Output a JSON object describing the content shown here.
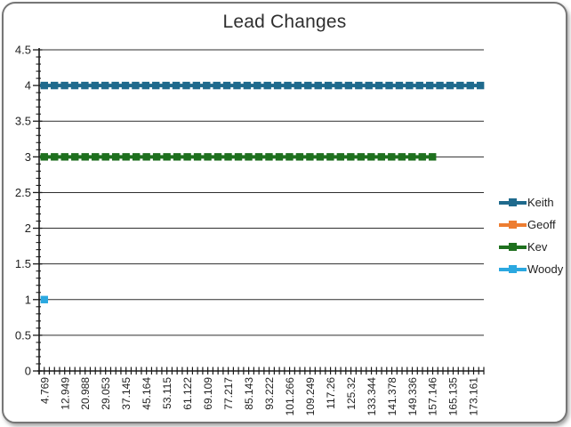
{
  "chart_data": {
    "type": "line",
    "title": "Lead Changes",
    "xlabel": "",
    "ylabel": "",
    "ylim": [
      0,
      4.5
    ],
    "y_tick_step": 0.5,
    "y_minor_tick_step": 0.1,
    "y_tick_labels": [
      "0",
      "0.5",
      "1",
      "1.5",
      "2",
      "2.5",
      "3",
      "3.5",
      "4",
      "4.5"
    ],
    "x_tick_labels": [
      "4.769",
      "12.949",
      "20.988",
      "29.053",
      "37.145",
      "45.164",
      "53.115",
      "61.122",
      "69.109",
      "77.217",
      "85.143",
      "93.222",
      "101.266",
      "109.249",
      "117.26",
      "125.32",
      "133.344",
      "141.378",
      "149.336",
      "157.146",
      "165.135",
      "173.161"
    ],
    "grid": "horizontal-major",
    "legend_position": "right",
    "series": [
      {
        "name": "Keith",
        "color": "#1F6A8D",
        "y": 4,
        "visible": true,
        "x_start_label": "4.769",
        "x_end_label": "173.161",
        "extends_past_last_tick": true,
        "shape": "constant line with square markers"
      },
      {
        "name": "Geoff",
        "color": "#ED7D31",
        "y": null,
        "visible": false,
        "x_start_label": null,
        "x_end_label": null,
        "extends_past_last_tick": false,
        "shape": "no visible points (legend entry only)"
      },
      {
        "name": "Kev",
        "color": "#1E701E",
        "y": 3,
        "visible": true,
        "x_start_label": "4.769",
        "x_end_label": "157.146",
        "extends_past_last_tick": false,
        "shape": "constant line with square markers"
      },
      {
        "name": "Woody",
        "color": "#2BA8E0",
        "y": 1,
        "visible": true,
        "x_start_label": "4.769",
        "x_end_label": "4.769",
        "extends_past_last_tick": false,
        "shape": "single square marker at first point"
      }
    ],
    "colors": {
      "gridline": "#2e2e2e",
      "axis": "#1a1a1a",
      "tick_text": "#1f1f1f",
      "frame_border": "#767676"
    }
  }
}
